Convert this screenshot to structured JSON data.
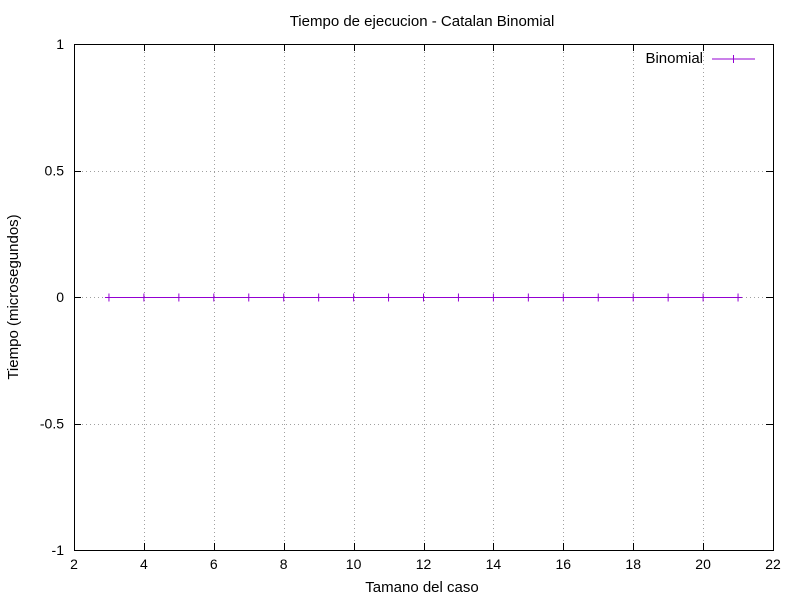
{
  "chart_data": {
    "type": "line",
    "title": "Tiempo de ejecucion - Catalan Binomial",
    "xlabel": "Tamano del caso",
    "ylabel": "Tiempo (microsegundos)",
    "xlim": [
      2,
      22
    ],
    "ylim": [
      -1,
      1
    ],
    "x_ticks": [
      2,
      4,
      6,
      8,
      10,
      12,
      14,
      16,
      18,
      20,
      22
    ],
    "x_tick_labels": [
      "2",
      "4",
      "6",
      "8",
      "10",
      "12",
      "14",
      "16",
      "18",
      "20",
      "22"
    ],
    "y_ticks": [
      -1,
      -0.5,
      0,
      0.5,
      1
    ],
    "y_tick_labels": [
      "-1",
      "-0.5",
      "0",
      "0.5",
      "1"
    ],
    "grid": true,
    "legend_position": "top-right",
    "series": [
      {
        "name": "Binomial",
        "color": "#9400d3",
        "marker": "plus",
        "x": [
          3,
          4,
          5,
          6,
          7,
          8,
          9,
          10,
          11,
          12,
          13,
          14,
          15,
          16,
          17,
          18,
          19,
          20,
          21
        ],
        "y": [
          0,
          0,
          0,
          0,
          0,
          0,
          0,
          0,
          0,
          0,
          0,
          0,
          0,
          0,
          0,
          0,
          0,
          0,
          0
        ]
      }
    ]
  }
}
